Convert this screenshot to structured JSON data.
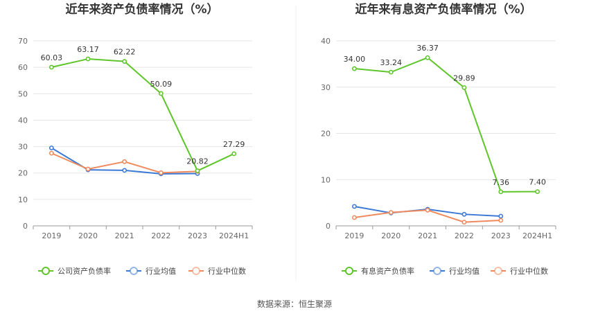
{
  "source": "数据来源：恒生聚源",
  "chart_data": [
    {
      "type": "line",
      "title": "近年来资产负债率情况（%）",
      "categories": [
        "2019",
        "2020",
        "2021",
        "2022",
        "2023",
        "2024H1"
      ],
      "ylim": [
        0,
        70
      ],
      "yticks": [
        0,
        10,
        20,
        30,
        40,
        50,
        60,
        70
      ],
      "grid": true,
      "legend_position": "bottom",
      "series": [
        {
          "name": "公司资产负债率",
          "color": "#5ec52a",
          "values": [
            60.03,
            63.17,
            62.22,
            50.09,
            20.82,
            27.29
          ],
          "labels": [
            "60.03",
            "63.17",
            "62.22",
            "50.09",
            "20.82",
            "27.29"
          ]
        },
        {
          "name": "行业均值",
          "color": "#3b79d6",
          "values": [
            29.5,
            21.2,
            21.0,
            19.7,
            19.8,
            null
          ],
          "labels": []
        },
        {
          "name": "行业中位数",
          "color": "#f08a5d",
          "values": [
            27.5,
            21.5,
            24.3,
            20.1,
            20.6,
            null
          ],
          "labels": []
        }
      ]
    },
    {
      "type": "line",
      "title": "近年来有息资产负债率情况（%）",
      "categories": [
        "2019",
        "2020",
        "2021",
        "2022",
        "2023",
        "2024H1"
      ],
      "ylim": [
        0,
        40
      ],
      "yticks": [
        0,
        10,
        20,
        30,
        40
      ],
      "grid": true,
      "legend_position": "bottom",
      "series": [
        {
          "name": "有息资产负债率",
          "color": "#5ec52a",
          "values": [
            34.0,
            33.24,
            36.37,
            29.89,
            7.36,
            7.4
          ],
          "labels": [
            "34.00",
            "33.24",
            "36.37",
            "29.89",
            "7.36",
            "7.40"
          ]
        },
        {
          "name": "行业均值",
          "color": "#3b79d6",
          "values": [
            4.2,
            2.8,
            3.6,
            2.5,
            2.1,
            null
          ],
          "labels": []
        },
        {
          "name": "行业中位数",
          "color": "#f08a5d",
          "values": [
            1.8,
            2.9,
            3.4,
            0.8,
            1.2,
            null
          ],
          "labels": []
        }
      ]
    }
  ]
}
